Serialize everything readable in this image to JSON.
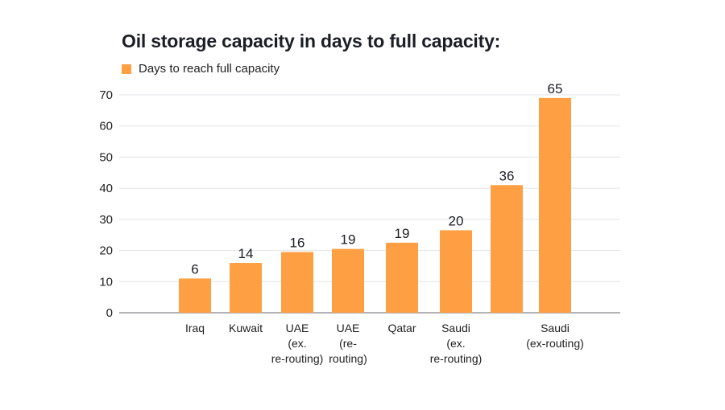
{
  "chart_data": {
    "type": "bar",
    "title": "Oil storage capacity in days to full capacity:",
    "legend": [
      {
        "name": "Days to reach full capacity",
        "color": "#ff9f43"
      }
    ],
    "legend_position": "top-left",
    "xlabel": "",
    "ylabel": "",
    "ylim": [
      0,
      70
    ],
    "yticks": [
      0,
      10,
      20,
      30,
      40,
      50,
      60,
      70
    ],
    "grid": true,
    "categories": [
      [
        "Iraq"
      ],
      [
        "Kuwait"
      ],
      [
        "UAE",
        "(ex.",
        "re-routing)"
      ],
      [
        "UAE",
        "(re-",
        "routing)"
      ],
      [
        "Qatar"
      ],
      [
        "Saudi",
        "(ex.",
        "re-routing)"
      ],
      [],
      [
        "Saudi",
        "(ex-routing)"
      ]
    ],
    "series": [
      {
        "name": "Days to reach full capacity",
        "color": "#ff9f43",
        "values": [
          6,
          14,
          16,
          19,
          19,
          20,
          36,
          65
        ],
        "drawn_bar_heights": [
          11,
          16,
          19.5,
          20.5,
          22.5,
          26.5,
          41,
          69
        ]
      }
    ]
  }
}
